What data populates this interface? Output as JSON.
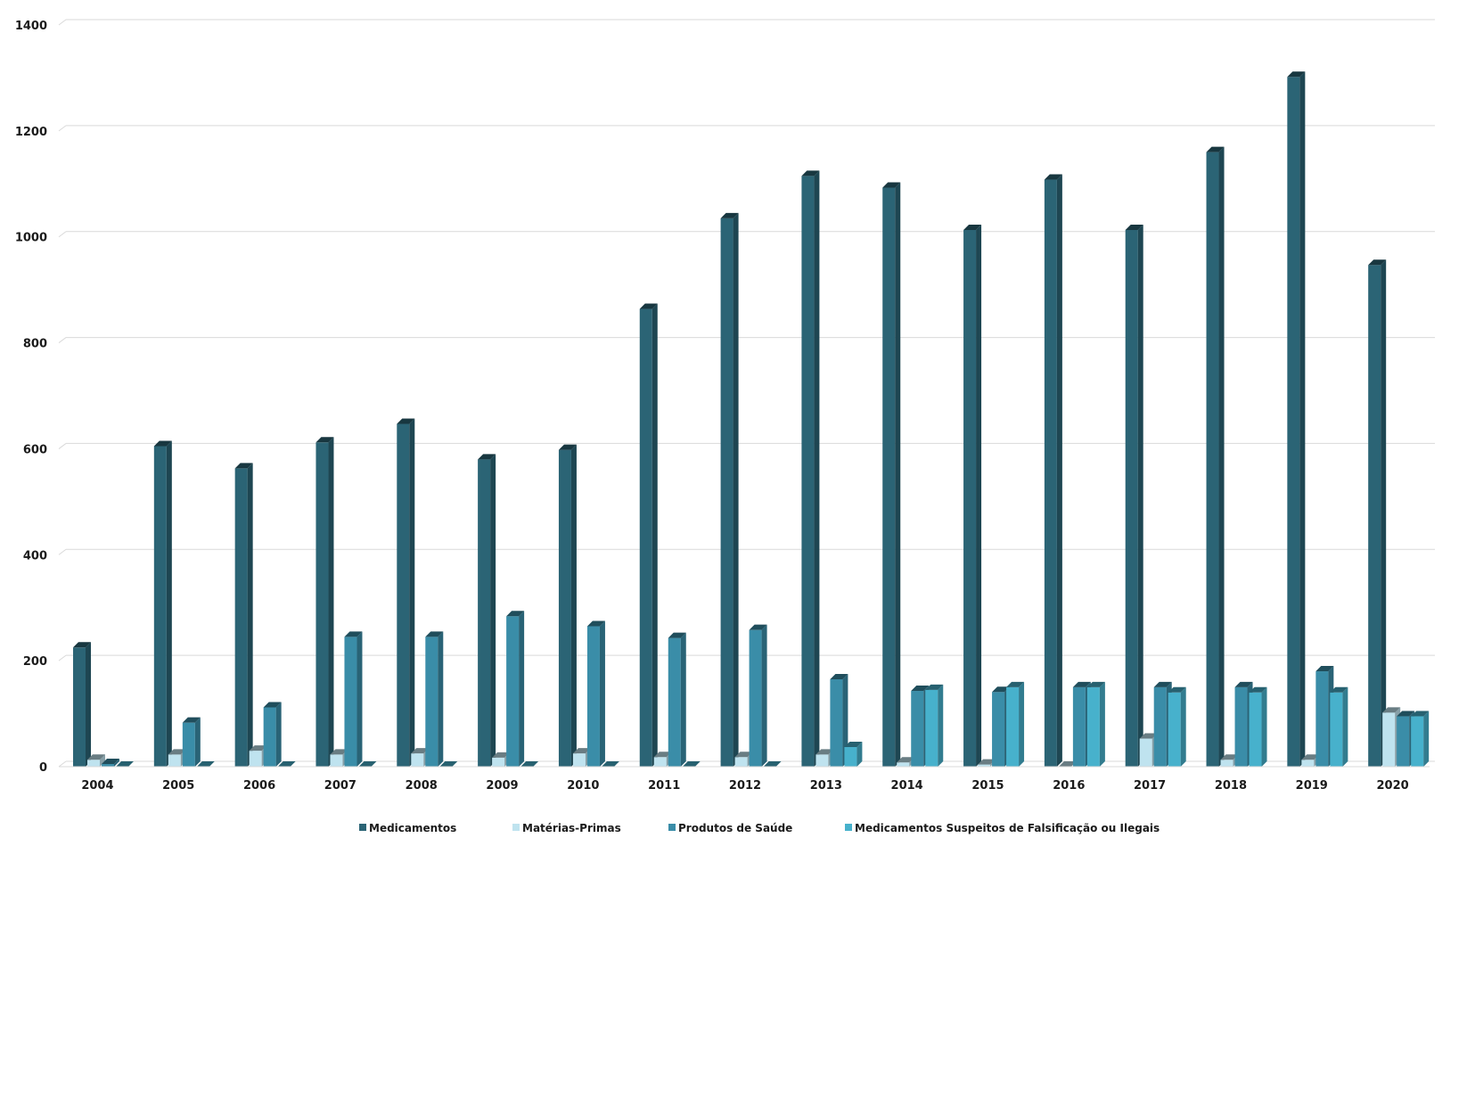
{
  "chart_data": {
    "type": "bar",
    "title": "",
    "xlabel": "",
    "ylabel": "",
    "ylim": [
      0,
      1400
    ],
    "yticks": [
      0,
      200,
      400,
      600,
      800,
      1000,
      1200,
      1400
    ],
    "grid": true,
    "legend_position": "bottom",
    "categories": [
      "2004",
      "2005",
      "2006",
      "2007",
      "2008",
      "2009",
      "2010",
      "2011",
      "2012",
      "2013",
      "2014",
      "2015",
      "2016",
      "2017",
      "2018",
      "2019",
      "2020"
    ],
    "series": [
      {
        "name": "Medicamentos",
        "color": "#2b6475",
        "values": [
          225,
          605,
          563,
          612,
          647,
          580,
          598,
          864,
          1035,
          1115,
          1093,
          1013,
          1108,
          1013,
          1160,
          1302,
          947
        ]
      },
      {
        "name": "Matérias-Primas",
        "color": "#bfe3ef",
        "values": [
          13,
          23,
          30,
          23,
          25,
          17,
          25,
          18,
          18,
          23,
          8,
          4,
          0,
          53,
          13,
          13,
          102
        ]
      },
      {
        "name": "Produtos de Saúde",
        "color": "#3a8da8",
        "values": [
          5,
          83,
          112,
          245,
          245,
          284,
          265,
          243,
          258,
          165,
          143,
          141,
          150,
          150,
          150,
          180,
          95
        ]
      },
      {
        "name": "Medicamentos Suspeitos de Falsificação ou Ilegais",
        "color": "#47b1cc",
        "values": [
          0,
          0,
          0,
          0,
          0,
          0,
          0,
          0,
          0,
          37,
          145,
          150,
          150,
          140,
          140,
          140,
          95
        ]
      }
    ]
  }
}
